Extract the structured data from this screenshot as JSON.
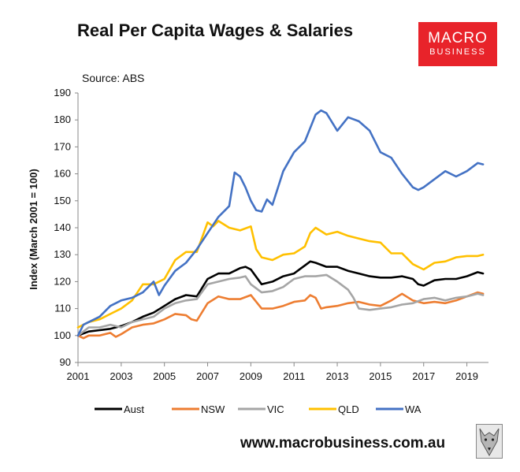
{
  "chart_data": {
    "type": "line",
    "title": "Real Per Capita Wages & Salaries",
    "source": "Source: ABS",
    "ylabel": "Index (March 2001 = 100)",
    "xlabel": "",
    "ylim": [
      90,
      190
    ],
    "xlim": [
      2001,
      2020
    ],
    "y_ticks": [
      90,
      100,
      110,
      120,
      130,
      140,
      150,
      160,
      170,
      180,
      190
    ],
    "y_tick_labels": [
      "90",
      "100",
      "110",
      "120",
      "130",
      "140",
      "150",
      "160",
      "170",
      "180",
      "190"
    ],
    "x_ticks": [
      2001,
      2003,
      2005,
      2007,
      2009,
      2011,
      2013,
      2015,
      2017,
      2019
    ],
    "x_tick_labels": [
      "2001",
      "2003",
      "2005",
      "2007",
      "2009",
      "2011",
      "2013",
      "2015",
      "2017",
      "2019"
    ],
    "grid": false,
    "legend_position": "bottom",
    "series": [
      {
        "name": "Aust",
        "color": "#000000",
        "x": [
          2001,
          2001.5,
          2002,
          2002.5,
          2003,
          2003.5,
          2004,
          2004.5,
          2005,
          2005.5,
          2006,
          2006.5,
          2007,
          2007.5,
          2008,
          2008.5,
          2008.75,
          2009,
          2009.5,
          2010,
          2010.5,
          2011,
          2011.5,
          2011.75,
          2012,
          2012.5,
          2013,
          2013.5,
          2014,
          2014.5,
          2015,
          2015.5,
          2016,
          2016.5,
          2016.75,
          2017,
          2017.5,
          2018,
          2018.5,
          2019,
          2019.5,
          2019.75
        ],
        "y": [
          100,
          101.5,
          102,
          102.5,
          103.5,
          105,
          107,
          108.5,
          111,
          113.5,
          115,
          114.5,
          121,
          123,
          123,
          125,
          125.5,
          124.5,
          119,
          120,
          122,
          123,
          126,
          127.5,
          127,
          125.5,
          125.5,
          124,
          123,
          122,
          121.5,
          121.5,
          122,
          121,
          119,
          118.5,
          120.5,
          121,
          121,
          122,
          123.5,
          123
        ]
      },
      {
        "name": "NSW",
        "color": "#ED7D31",
        "x": [
          2001,
          2001.25,
          2001.5,
          2002,
          2002.5,
          2002.75,
          2003,
          2003.5,
          2004,
          2004.5,
          2005,
          2005.5,
          2006,
          2006.25,
          2006.5,
          2007,
          2007.5,
          2008,
          2008.5,
          2009,
          2009.5,
          2010,
          2010.5,
          2011,
          2011.5,
          2011.75,
          2012,
          2012.25,
          2012.5,
          2013,
          2013.5,
          2014,
          2014.5,
          2015,
          2015.5,
          2016,
          2016.5,
          2017,
          2017.5,
          2018,
          2018.5,
          2019,
          2019.5,
          2019.75
        ],
        "y": [
          100,
          99,
          100,
          100,
          101,
          99.5,
          100.5,
          103,
          104,
          104.5,
          106,
          108,
          107.5,
          106,
          105.5,
          112,
          114.5,
          113.5,
          113.5,
          115,
          110,
          110,
          111,
          112.5,
          113,
          115,
          114,
          110,
          110.5,
          111,
          112,
          112.5,
          111.5,
          111,
          113,
          115.5,
          113,
          112,
          112.5,
          112,
          113,
          114.5,
          116,
          115.5
        ]
      },
      {
        "name": "VIC",
        "color": "#A5A5A5",
        "x": [
          2001,
          2001.5,
          2002,
          2002.5,
          2003,
          2003.5,
          2004,
          2004.5,
          2005,
          2005.5,
          2006,
          2006.5,
          2007,
          2007.5,
          2008,
          2008.5,
          2008.75,
          2009,
          2009.5,
          2010,
          2010.5,
          2011,
          2011.5,
          2012,
          2012.5,
          2013,
          2013.5,
          2013.75,
          2014,
          2014.5,
          2015,
          2015.5,
          2016,
          2016.5,
          2017,
          2017.5,
          2018,
          2018.5,
          2019,
          2019.5,
          2019.75
        ],
        "y": [
          100,
          103,
          103,
          104,
          103,
          105,
          106,
          107,
          110,
          112,
          113,
          113.5,
          119,
          120,
          121,
          121.5,
          122,
          119,
          116,
          116.5,
          118,
          121,
          122,
          122,
          122.5,
          120,
          117,
          114,
          110,
          109.5,
          110,
          110.5,
          111.5,
          112,
          113.5,
          114,
          113,
          114,
          114.5,
          115.5,
          115
        ]
      },
      {
        "name": "QLD",
        "color": "#FFC000",
        "x": [
          2001,
          2001.5,
          2002,
          2002.5,
          2003,
          2003.5,
          2004,
          2004.5,
          2005,
          2005.5,
          2006,
          2006.5,
          2007,
          2007.25,
          2007.5,
          2008,
          2008.5,
          2009,
          2009.25,
          2009.5,
          2010,
          2010.5,
          2011,
          2011.5,
          2011.75,
          2012,
          2012.5,
          2013,
          2013.5,
          2014,
          2014.5,
          2015,
          2015.5,
          2016,
          2016.5,
          2017,
          2017.5,
          2018,
          2018.5,
          2019,
          2019.5,
          2019.75
        ],
        "y": [
          103,
          105,
          106,
          108,
          110,
          113,
          119,
          119,
          121,
          128,
          131,
          131,
          142,
          140.5,
          142.5,
          140,
          139,
          140.5,
          132,
          129,
          128,
          130,
          130.5,
          133,
          138,
          140,
          137.5,
          138.5,
          137,
          136,
          135,
          134.5,
          130.5,
          130.5,
          126.5,
          124.5,
          127,
          127.5,
          129,
          129.5,
          129.5,
          130
        ]
      },
      {
        "name": "WA",
        "color": "#4472C4",
        "x": [
          2001,
          2001.25,
          2001.5,
          2002,
          2002.5,
          2003,
          2003.5,
          2004,
          2004.5,
          2004.75,
          2005,
          2005.5,
          2006,
          2006.5,
          2007,
          2007.5,
          2008,
          2008.25,
          2008.5,
          2008.75,
          2009,
          2009.25,
          2009.5,
          2009.75,
          2010,
          2010.5,
          2011,
          2011.5,
          2012,
          2012.25,
          2012.5,
          2013,
          2013.5,
          2014,
          2014.5,
          2015,
          2015.5,
          2016,
          2016.5,
          2016.75,
          2017,
          2017.5,
          2018,
          2018.5,
          2019,
          2019.5,
          2019.75
        ],
        "y": [
          100,
          104,
          105,
          107,
          111,
          113,
          114,
          116,
          120,
          115,
          118.5,
          124,
          127,
          132,
          138,
          144,
          148,
          160.5,
          159,
          155,
          150,
          146.5,
          146,
          150.5,
          148.5,
          161,
          168,
          172,
          182,
          183.5,
          182.5,
          176,
          181,
          179.5,
          176,
          168,
          166,
          160,
          155,
          154,
          155,
          158,
          161,
          159,
          161,
          164,
          163.5
        ]
      }
    ]
  },
  "logo": {
    "line1": "MACRO",
    "line2": "BUSINESS",
    "bg_color": "#E8232A"
  },
  "footer": {
    "url": "www.macrobusiness.com.au",
    "icon": "wolf-icon"
  }
}
